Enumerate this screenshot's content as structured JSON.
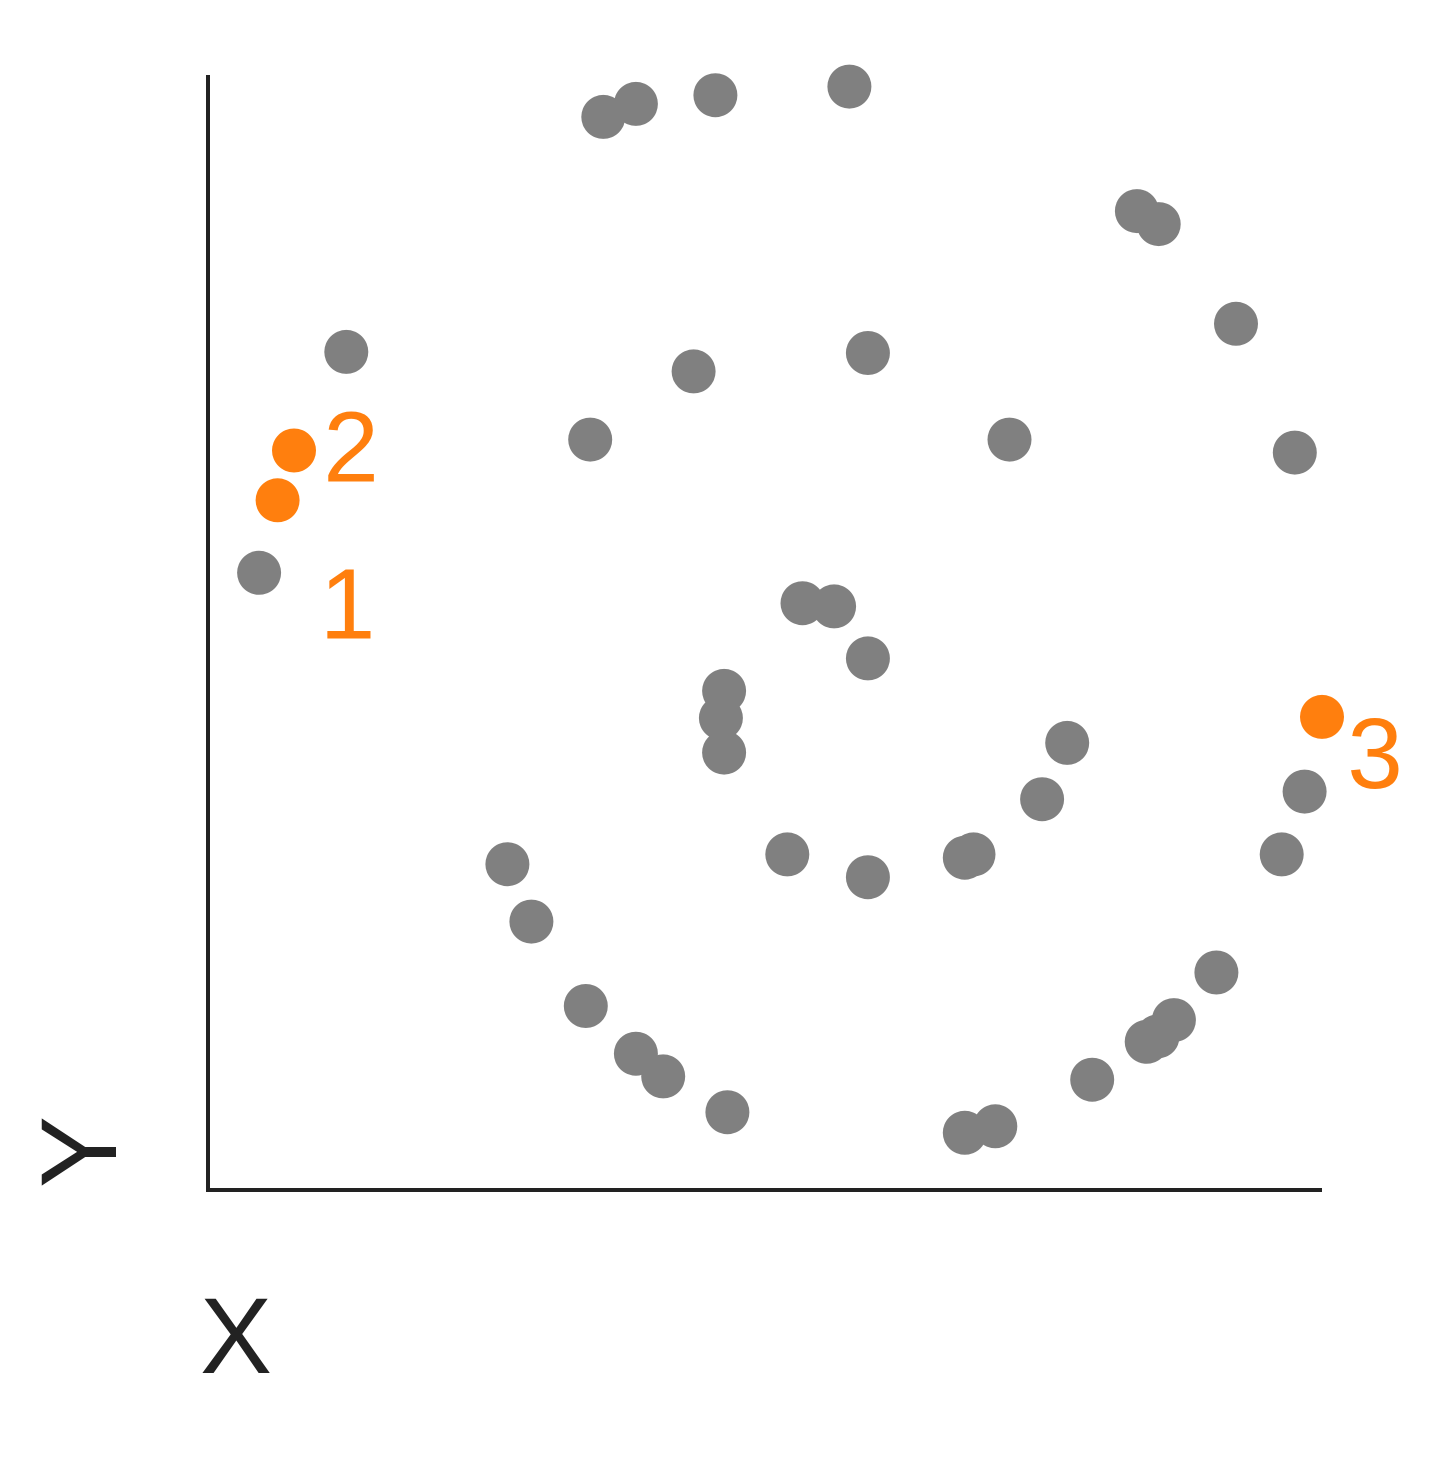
{
  "chart_data": {
    "type": "scatter",
    "xlabel": "X",
    "ylabel": "Y",
    "xlim": [
      0,
      100
    ],
    "ylim": [
      0,
      100
    ],
    "grid": false,
    "legend": "none",
    "colors": {
      "base": "#808080",
      "highlight": "#ff7f0e",
      "axis": "#222222"
    },
    "series": [
      {
        "color": "#808080",
        "points": [
          {
            "x": 34.0,
            "y": 96.5
          },
          {
            "x": 37.0,
            "y": 97.7
          },
          {
            "x": 44.3,
            "y": 98.5
          },
          {
            "x": 56.6,
            "y": 99.3
          },
          {
            "x": 83.0,
            "y": 87.8
          },
          {
            "x": 85.0,
            "y": 86.6
          },
          {
            "x": 92.1,
            "y": 77.4
          },
          {
            "x": 97.5,
            "y": 65.5
          },
          {
            "x": 10.4,
            "y": 74.8
          },
          {
            "x": 42.3,
            "y": 73.0
          },
          {
            "x": 58.3,
            "y": 74.7
          },
          {
            "x": 32.8,
            "y": 66.7
          },
          {
            "x": 71.3,
            "y": 66.7
          },
          {
            "x": 2.4,
            "y": 54.4
          },
          {
            "x": 52.3,
            "y": 51.6
          },
          {
            "x": 55.2,
            "y": 51.3
          },
          {
            "x": 58.3,
            "y": 46.5
          },
          {
            "x": 45.1,
            "y": 43.5
          },
          {
            "x": 44.8,
            "y": 41.0
          },
          {
            "x": 45.1,
            "y": 37.8
          },
          {
            "x": 76.6,
            "y": 38.7
          },
          {
            "x": 74.3,
            "y": 33.5
          },
          {
            "x": 68.0,
            "y": 28.4
          },
          {
            "x": 67.2,
            "y": 28.1
          },
          {
            "x": 58.3,
            "y": 26.3
          },
          {
            "x": 50.9,
            "y": 28.4
          },
          {
            "x": 25.2,
            "y": 27.5
          },
          {
            "x": 27.4,
            "y": 22.2
          },
          {
            "x": 32.4,
            "y": 14.4
          },
          {
            "x": 37.0,
            "y": 10.0
          },
          {
            "x": 39.5,
            "y": 7.9
          },
          {
            "x": 45.4,
            "y": 4.6
          },
          {
            "x": 67.2,
            "y": 2.7
          },
          {
            "x": 70.0,
            "y": 3.3
          },
          {
            "x": 78.9,
            "y": 7.6
          },
          {
            "x": 83.9,
            "y": 11.1
          },
          {
            "x": 84.9,
            "y": 11.6
          },
          {
            "x": 86.4,
            "y": 13.1
          },
          {
            "x": 90.3,
            "y": 17.5
          },
          {
            "x": 96.3,
            "y": 28.4
          },
          {
            "x": 98.4,
            "y": 34.2
          }
        ]
      },
      {
        "color": "#ff7f0e",
        "points": [
          {
            "x": 4.1,
            "y": 61.1,
            "label": "1"
          },
          {
            "x": 5.6,
            "y": 65.7,
            "label": "2"
          },
          {
            "x": 100.0,
            "y": 41.1,
            "label": "3"
          }
        ]
      }
    ]
  }
}
